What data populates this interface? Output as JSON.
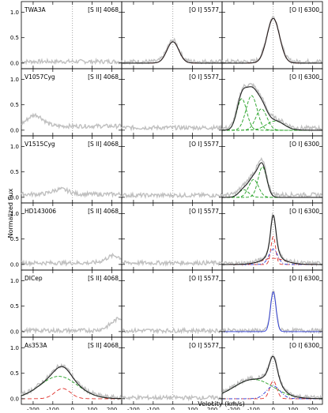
{
  "chart_data": {
    "type": "line",
    "ylabel": "Normalized flux",
    "xlabel": "Velocity (km/s)",
    "xlim": [
      -260,
      250
    ],
    "ylim": [
      -0.08,
      1.18
    ],
    "x_ticks": [
      -200,
      -100,
      0,
      100,
      200
    ],
    "y_ticks": [
      0.0,
      0.5,
      1.0
    ],
    "x_tick_labels": [
      "-200",
      "-100",
      "0",
      "100",
      "200"
    ],
    "y_tick_labels": [
      "0.0",
      "0.5",
      "1.0"
    ],
    "columns": [
      "[S II] 4068",
      "[O I] 5577",
      "[O I] 6300"
    ],
    "colors": {
      "observed": "#c0c0c0",
      "fit": "#222222",
      "red": "#e0302a",
      "green": "#22a022",
      "blue": "#2a3ad8",
      "zero_line": "#808080"
    },
    "stars": [
      {
        "name": "TWA3A",
        "panels": [
          {
            "observed_level": 0.03,
            "components": []
          },
          {
            "observed_level": 0.03,
            "components": [
              {
                "color": "red",
                "amp": 0.42,
                "center": 0,
                "sigma": 30
              }
            ]
          },
          {
            "observed_level": 0.03,
            "components": [
              {
                "color": "red",
                "amp": 0.88,
                "center": 0,
                "sigma": 32
              }
            ]
          }
        ]
      },
      {
        "name": "V1057Cyg",
        "panels": [
          {
            "observed_level": 0.08,
            "components": [
              {
                "color": "none",
                "amp": 0.22,
                "center": -190,
                "sigma": 40
              }
            ]
          },
          {
            "observed_level": 0.05,
            "components": []
          },
          {
            "observed_level": 0.04,
            "components": [
              {
                "color": "green",
                "amp": 0.62,
                "center": -160,
                "sigma": 25
              },
              {
                "color": "green",
                "amp": 0.68,
                "center": -110,
                "sigma": 28
              },
              {
                "color": "green",
                "amp": 0.42,
                "center": -60,
                "sigma": 28
              },
              {
                "color": "green",
                "amp": 0.18,
                "center": 10,
                "sigma": 45
              }
            ]
          }
        ]
      },
      {
        "name": "V1515Cyg",
        "panels": [
          {
            "observed_level": 0.06,
            "components": [
              {
                "color": "none",
                "amp": 0.1,
                "center": -60,
                "sigma": 40
              }
            ]
          },
          {
            "observed_level": 0.04,
            "components": []
          },
          {
            "observed_level": 0.05,
            "components": [
              {
                "color": "green",
                "amp": 0.6,
                "center": -55,
                "sigma": 22
              },
              {
                "color": "green",
                "amp": 0.35,
                "center": -100,
                "sigma": 25
              },
              {
                "color": "green",
                "amp": 0.15,
                "center": -150,
                "sigma": 25
              }
            ]
          }
        ]
      },
      {
        "name": "HD143006",
        "panels": [
          {
            "observed_level": 0.03,
            "components": [
              {
                "color": "none",
                "amp": 0.14,
                "center": 210,
                "sigma": 40
              }
            ]
          },
          {
            "observed_level": 0.03,
            "components": []
          },
          {
            "observed_level": 0.02,
            "components": [
              {
                "color": "red",
                "amp": 0.55,
                "center": 0,
                "sigma": 12
              },
              {
                "color": "blue",
                "amp": 0.3,
                "center": 0,
                "sigma": 22
              },
              {
                "color": "red",
                "amp": 0.12,
                "center": 0,
                "sigma": 60
              }
            ]
          }
        ]
      },
      {
        "name": "DICep",
        "panels": [
          {
            "observed_level": 0.02,
            "components": [
              {
                "color": "none",
                "amp": 0.25,
                "center": 250,
                "sigma": 50
              }
            ]
          },
          {
            "observed_level": 0.02,
            "components": []
          },
          {
            "observed_level": 0.02,
            "components": [
              {
                "color": "blue",
                "amp": 0.78,
                "center": 0,
                "sigma": 14
              }
            ]
          }
        ]
      },
      {
        "name": "As353A",
        "panels": [
          {
            "observed_level": 0.02,
            "components": [
              {
                "color": "green",
                "amp": 0.44,
                "center": -70,
                "sigma": 95
              },
              {
                "color": "red",
                "amp": 0.2,
                "center": -50,
                "sigma": 40
              }
            ]
          },
          {
            "observed_level": 0.02,
            "components": []
          },
          {
            "observed_level": 0.02,
            "components": [
              {
                "color": "green",
                "amp": 0.38,
                "center": -100,
                "sigma": 100
              },
              {
                "color": "red",
                "amp": 0.35,
                "center": 0,
                "sigma": 18
              },
              {
                "color": "blue",
                "amp": 0.25,
                "center": 0,
                "sigma": 35
              }
            ]
          }
        ]
      }
    ]
  }
}
